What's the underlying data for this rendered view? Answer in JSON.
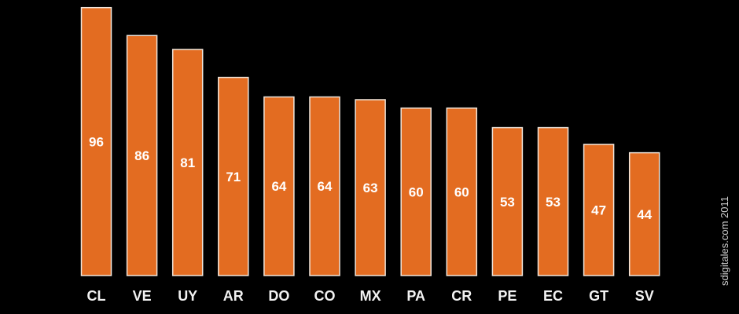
{
  "colors": {
    "background": "#000000",
    "bar_fill": "#e36c21",
    "bar_stroke": "#f0e6dc",
    "text": "#ffffff"
  },
  "watermark": "sdigitales.com 2011",
  "chart_data": {
    "type": "bar",
    "categories": [
      "CL",
      "VE",
      "UY",
      "AR",
      "DO",
      "CO",
      "MX",
      "PA",
      "CR",
      "PE",
      "EC",
      "GT",
      "SV"
    ],
    "values": [
      96,
      86,
      81,
      71,
      64,
      64,
      63,
      60,
      60,
      53,
      53,
      47,
      44
    ],
    "title": "",
    "xlabel": "",
    "ylabel": "",
    "ylim": [
      0,
      100
    ],
    "grid": false,
    "data_labels": true
  }
}
